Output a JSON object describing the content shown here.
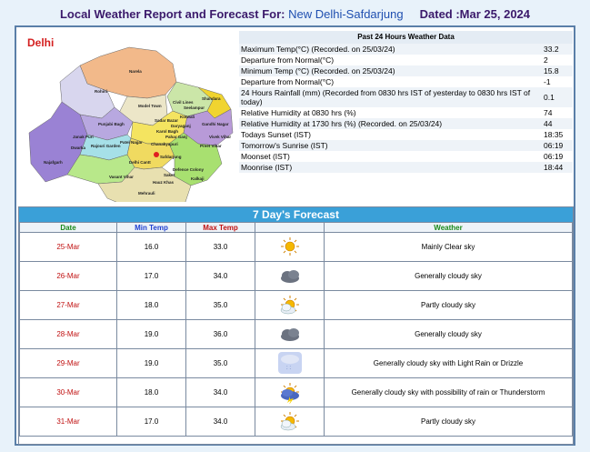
{
  "header": {
    "prefix": "Local Weather Report and Forecast For:",
    "location": "New Delhi-Safdarjung",
    "dated": "Dated :Mar 25, 2024"
  },
  "map": {
    "title": "Delhi",
    "labels": [
      "Narela",
      "Rohini",
      "Punjabi Bagh",
      "Model Town",
      "Civil Lines",
      "Seelampur",
      "Shahdara",
      "Vivek Vihar",
      "Patel Nagar",
      "Rajouri Garden",
      "Karol Bagh",
      "Delhi Cantt",
      "Najafgarh",
      "Vasant Vihar",
      "Chanakyapuri",
      "Defence Colony",
      "Preet Vihar",
      "Mehrauli",
      "Hauz Khas",
      "Kalkaji",
      "Saket",
      "Dwarka",
      "Safdarjung",
      "Janak Puri",
      "Kotwali",
      "Gandhi Nagar",
      "Daryaganj",
      "Sadar Bazar",
      "Pahar Ganj"
    ]
  },
  "past24": {
    "heading": "Past 24 Hours Weather Data",
    "rows": [
      {
        "label": "Maximum Temp(°C) (Recorded. on 25/03/24)",
        "value": "33.2"
      },
      {
        "label": "Departure from Normal(°C)",
        "value": "2"
      },
      {
        "label": "Minimum Temp (°C) (Recorded. on 25/03/24)",
        "value": "15.8"
      },
      {
        "label": "Departure from Normal(°C)",
        "value": "-1"
      },
      {
        "label": "24 Hours Rainfall (mm) (Recorded from 0830 hrs IST of yesterday to 0830 hrs IST of today)",
        "value": "0.1"
      },
      {
        "label": "Relative Humidity at 0830 hrs (%)",
        "value": "74"
      },
      {
        "label": "Relative Humidity at 1730 hrs (%) (Recorded. on 25/03/24)",
        "value": "44"
      },
      {
        "label": "Todays Sunset (IST)",
        "value": "18:35"
      },
      {
        "label": "Tomorrow's Sunrise (IST)",
        "value": "06:19"
      },
      {
        "label": "Moonset (IST)",
        "value": "06:19"
      },
      {
        "label": "Moonrise (IST)",
        "value": "18:44"
      }
    ]
  },
  "forecast": {
    "heading": "7 Day's Forecast",
    "columns": {
      "date": "Date",
      "min": "Min Temp",
      "max": "Max Temp",
      "weather": "Weather"
    },
    "column_colors": {
      "date": "#1a8a1a",
      "min": "#1f3fd0",
      "max": "#c01010",
      "weather": "#1a8a1a"
    },
    "days": [
      {
        "date": "25-Mar",
        "min": "16.0",
        "max": "33.0",
        "icon": "sun-clear-icon",
        "weather": "Mainly Clear sky"
      },
      {
        "date": "26-Mar",
        "min": "17.0",
        "max": "34.0",
        "icon": "cloudy-icon",
        "weather": "Generally cloudy sky"
      },
      {
        "date": "27-Mar",
        "min": "18.0",
        "max": "35.0",
        "icon": "partly-cloudy-icon",
        "weather": "Partly cloudy sky"
      },
      {
        "date": "28-Mar",
        "min": "19.0",
        "max": "36.0",
        "icon": "cloudy-icon",
        "weather": "Generally cloudy sky"
      },
      {
        "date": "29-Mar",
        "min": "19.0",
        "max": "35.0",
        "icon": "drizzle-icon",
        "weather": "Generally cloudy sky with Light Rain or Drizzle"
      },
      {
        "date": "30-Mar",
        "min": "18.0",
        "max": "34.0",
        "icon": "thunderstorm-icon",
        "weather": "Generally cloudy sky with possibility of rain or Thunderstorm"
      },
      {
        "date": "31-Mar",
        "min": "17.0",
        "max": "34.0",
        "icon": "partly-cloudy-icon",
        "weather": "Partly cloudy sky"
      }
    ]
  }
}
